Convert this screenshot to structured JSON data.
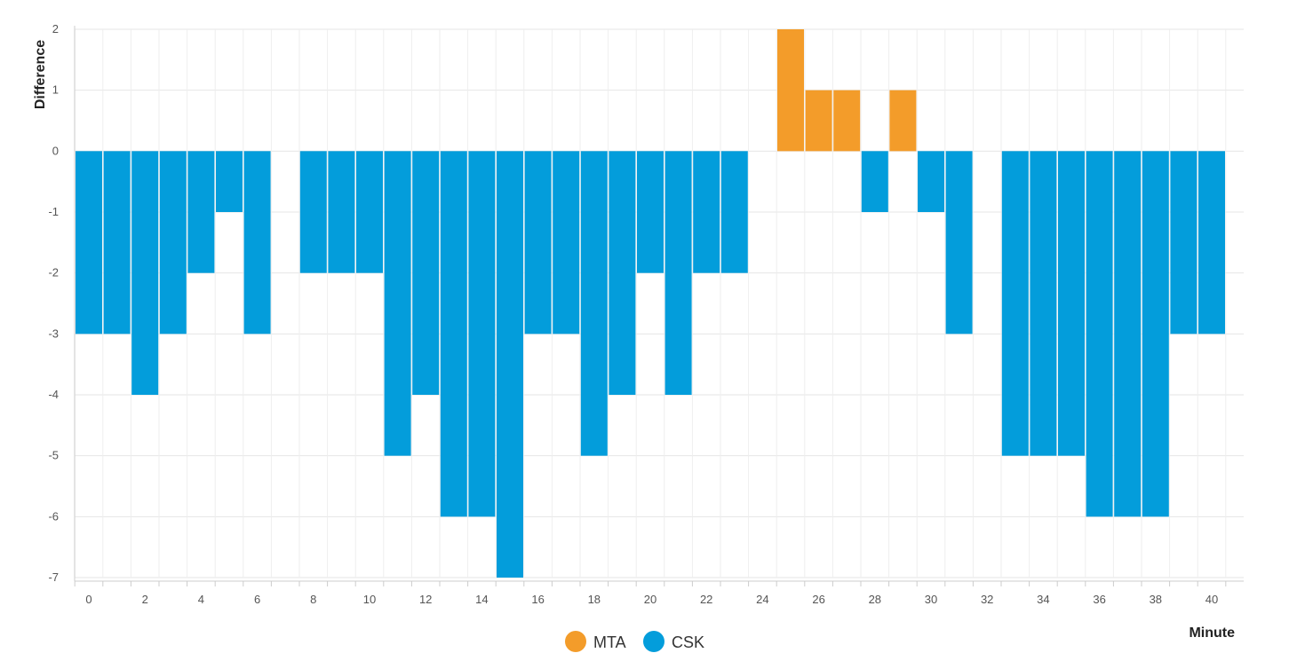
{
  "chart_data": {
    "type": "bar",
    "xlabel": "Minute",
    "ylabel": "Difference",
    "ylim": [
      -7,
      2
    ],
    "xlim": [
      0,
      40
    ],
    "grid": true,
    "legend_position": "bottom",
    "x_ticks": [
      0,
      2,
      4,
      6,
      8,
      10,
      12,
      14,
      16,
      18,
      20,
      22,
      24,
      26,
      28,
      30,
      32,
      34,
      36,
      38,
      40
    ],
    "y_ticks": [
      2,
      1,
      0,
      -1,
      -2,
      -3,
      -4,
      -5,
      -6,
      -7
    ],
    "x": [
      0,
      1,
      2,
      3,
      4,
      5,
      6,
      7,
      8,
      9,
      10,
      11,
      12,
      13,
      14,
      15,
      16,
      17,
      18,
      19,
      20,
      21,
      22,
      23,
      24,
      25,
      26,
      27,
      28,
      29,
      30,
      31,
      32,
      33,
      34,
      35,
      36,
      37,
      38,
      39,
      40
    ],
    "values": [
      -3,
      -3,
      -4,
      -3,
      -2,
      -1,
      -3,
      0,
      -2,
      -2,
      -2,
      -5,
      -4,
      -6,
      -6,
      -7,
      -3,
      -3,
      -5,
      -4,
      -2,
      -4,
      -2,
      -2,
      0,
      2,
      1,
      1,
      -1,
      1,
      -1,
      -3,
      0,
      -5,
      -5,
      -5,
      -6,
      -6,
      -6,
      -3,
      -3
    ],
    "series": [
      {
        "name": "MTA",
        "color": "#f39c2a",
        "rule": "positive"
      },
      {
        "name": "CSK",
        "color": "#039ddb",
        "rule": "negative"
      }
    ]
  }
}
